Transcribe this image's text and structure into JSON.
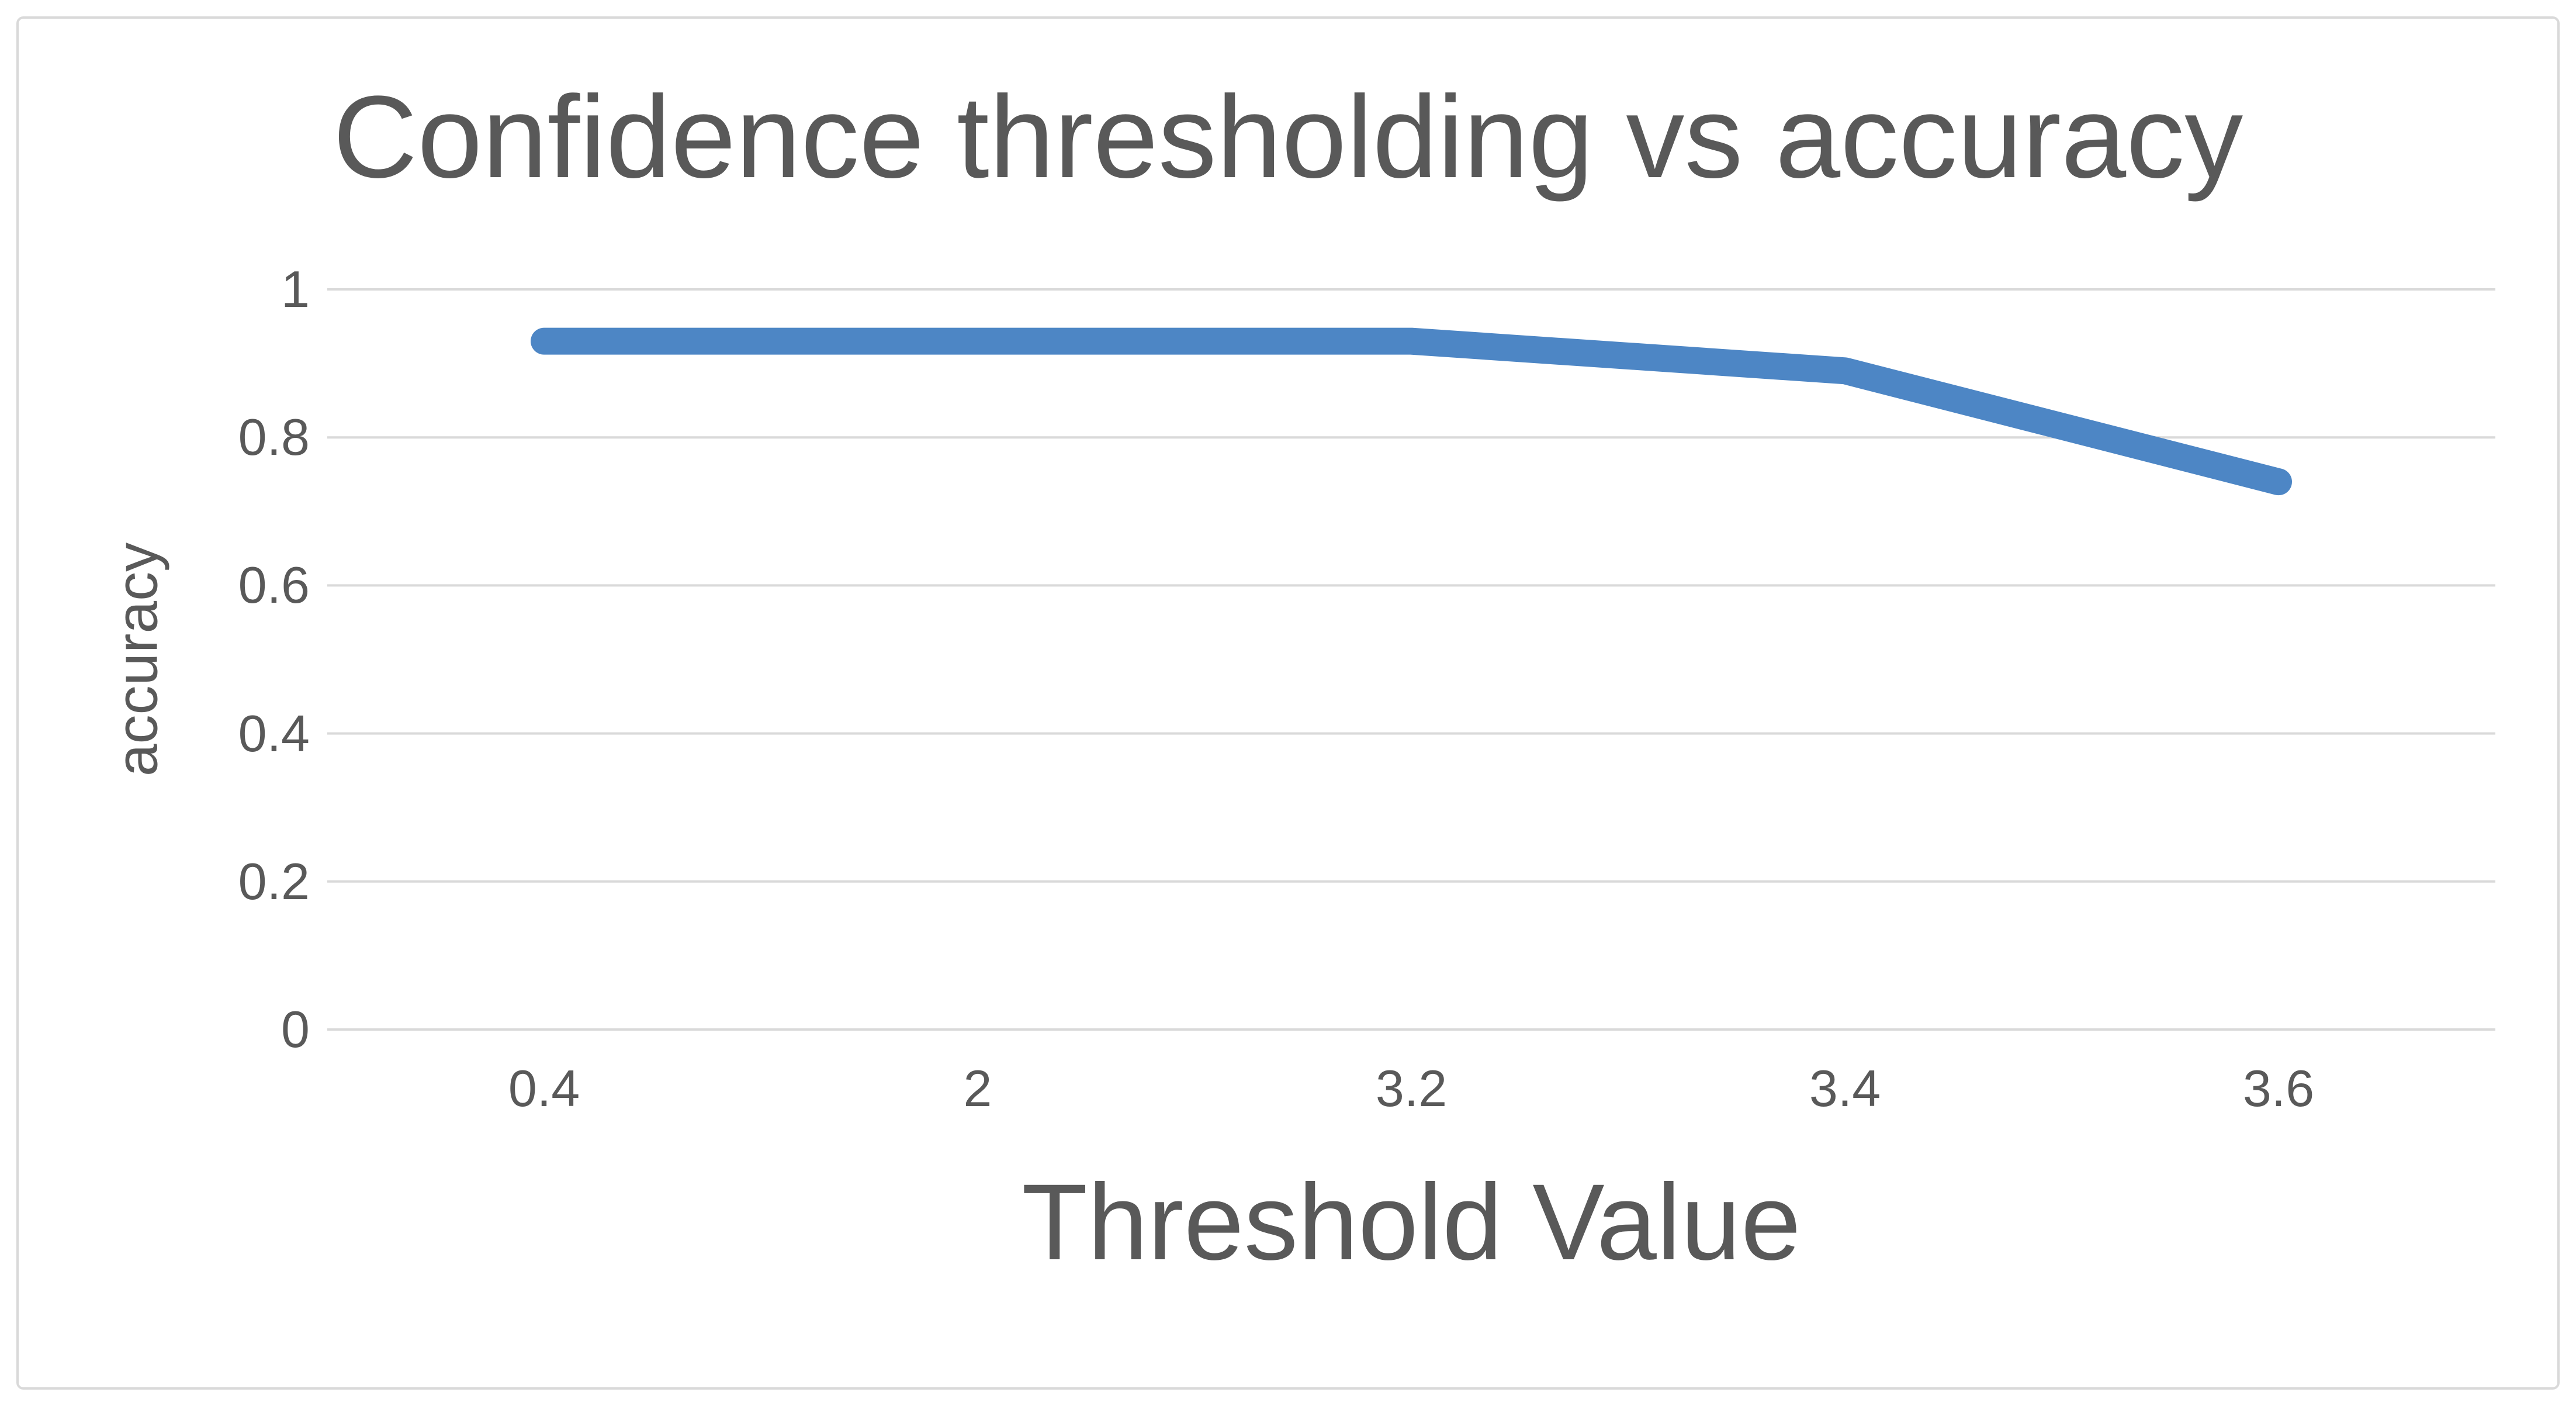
{
  "chart_data": {
    "type": "line",
    "title": "Confidence thresholding vs accuracy",
    "xlabel": "Threshold Value",
    "ylabel": "accuracy",
    "categories": [
      "0.4",
      "2",
      "3.2",
      "3.4",
      "3.6"
    ],
    "series": [
      {
        "name": "accuracy",
        "values": [
          0.93,
          0.93,
          0.93,
          0.89,
          0.74
        ]
      }
    ],
    "yticks": [
      0,
      0.2,
      0.4,
      0.6,
      0.8,
      1
    ],
    "ytick_labels": [
      "0",
      "0.2",
      "0.4",
      "0.6",
      "0.8",
      "1"
    ],
    "ylim": [
      0,
      1
    ],
    "grid": "horizontal-only",
    "legend": "none",
    "line_color": "#4d86c5",
    "gridline_color": "#d9d9d9",
    "border_color": "#d9d9d9",
    "text_color": "#595959",
    "background_color": "#ffffff"
  }
}
